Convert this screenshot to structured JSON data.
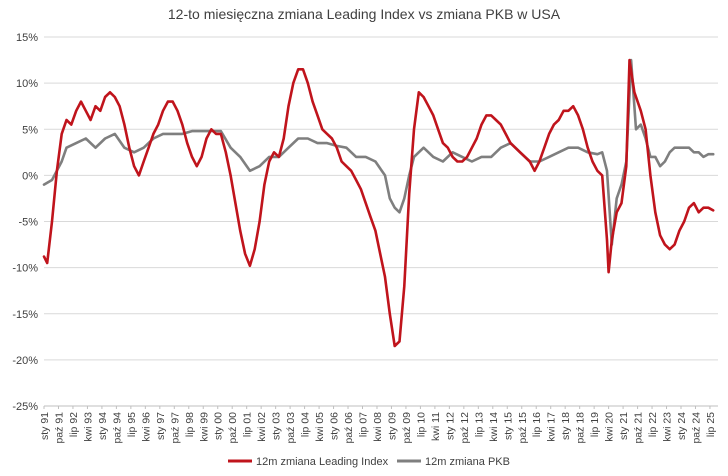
{
  "chart_data": {
    "type": "line",
    "title": "12-to miesięczna zmiana Leading Index vs zmiana PKB w USA",
    "xlabel": "",
    "ylabel": "",
    "x_range": [
      "1991-01",
      "2025-12"
    ],
    "ylim": [
      -25,
      15
    ],
    "y_ticks": [
      15,
      10,
      5,
      0,
      -5,
      -10,
      -15,
      -20,
      -25
    ],
    "y_tick_labels": [
      "15%",
      "10%",
      "5%",
      "0%",
      "-5%",
      "-10%",
      "-15%",
      "-20%",
      "-25%"
    ],
    "x_tick_labels": [
      "sty 91",
      "paź 91",
      "lip 92",
      "kwi 93",
      "sty 94",
      "paź 94",
      "lip 95",
      "kwi 96",
      "sty 97",
      "paź 97",
      "lip 98",
      "kwi 99",
      "sty 00",
      "paź 00",
      "lip 01",
      "kwi 02",
      "sty 03",
      "paź 03",
      "lip 04",
      "kwi 05",
      "sty 06",
      "paź 06",
      "lip 07",
      "kwi 08",
      "sty 09",
      "paź 09",
      "lip 10",
      "kwi 11",
      "sty 12",
      "paź 12",
      "lip 13",
      "kwi 14",
      "sty 15",
      "paź 15",
      "lip 16",
      "kwi 17",
      "sty 18",
      "paź 18",
      "lip 19",
      "kwi 20",
      "sty 21",
      "paź 21",
      "lip 22",
      "kwi 23",
      "sty 24",
      "paź 24",
      "lip 25"
    ],
    "grid": "horizontal",
    "legend_position": "bottom",
    "series": [
      {
        "name": "12m zmiana Leading Index",
        "color": "#c0141c",
        "points": [
          [
            "1991-01",
            -8.8
          ],
          [
            "1991-03",
            -9.5
          ],
          [
            "1991-06",
            -5.0
          ],
          [
            "1991-09",
            0.5
          ],
          [
            "1991-12",
            4.5
          ],
          [
            "1992-03",
            6.0
          ],
          [
            "1992-06",
            5.5
          ],
          [
            "1992-09",
            7.0
          ],
          [
            "1992-12",
            8.0
          ],
          [
            "1993-03",
            7.0
          ],
          [
            "1993-06",
            6.0
          ],
          [
            "1993-09",
            7.5
          ],
          [
            "1993-12",
            7.0
          ],
          [
            "1994-03",
            8.5
          ],
          [
            "1994-06",
            9.0
          ],
          [
            "1994-09",
            8.5
          ],
          [
            "1994-12",
            7.5
          ],
          [
            "1995-03",
            5.5
          ],
          [
            "1995-06",
            3.0
          ],
          [
            "1995-09",
            1.0
          ],
          [
            "1995-12",
            0.0
          ],
          [
            "1996-03",
            1.5
          ],
          [
            "1996-06",
            3.0
          ],
          [
            "1996-09",
            4.5
          ],
          [
            "1996-12",
            5.5
          ],
          [
            "1997-03",
            7.0
          ],
          [
            "1997-06",
            8.0
          ],
          [
            "1997-09",
            8.0
          ],
          [
            "1997-12",
            7.0
          ],
          [
            "1998-03",
            5.5
          ],
          [
            "1998-06",
            3.5
          ],
          [
            "1998-09",
            2.0
          ],
          [
            "1998-12",
            1.0
          ],
          [
            "1999-03",
            2.0
          ],
          [
            "1999-06",
            4.0
          ],
          [
            "1999-09",
            5.0
          ],
          [
            "1999-12",
            4.5
          ],
          [
            "2000-03",
            4.5
          ],
          [
            "2000-06",
            2.5
          ],
          [
            "2000-09",
            0.0
          ],
          [
            "2000-12",
            -3.0
          ],
          [
            "2001-03",
            -6.0
          ],
          [
            "2001-06",
            -8.5
          ],
          [
            "2001-09",
            -9.8
          ],
          [
            "2001-12",
            -8.0
          ],
          [
            "2002-03",
            -5.0
          ],
          [
            "2002-06",
            -1.0
          ],
          [
            "2002-09",
            1.5
          ],
          [
            "2002-12",
            2.5
          ],
          [
            "2003-03",
            2.0
          ],
          [
            "2003-06",
            4.0
          ],
          [
            "2003-09",
            7.5
          ],
          [
            "2003-12",
            10.0
          ],
          [
            "2004-03",
            11.5
          ],
          [
            "2004-06",
            11.5
          ],
          [
            "2004-09",
            10.0
          ],
          [
            "2004-12",
            8.0
          ],
          [
            "2005-03",
            6.5
          ],
          [
            "2005-06",
            5.0
          ],
          [
            "2005-09",
            4.5
          ],
          [
            "2005-12",
            4.0
          ],
          [
            "2006-03",
            3.0
          ],
          [
            "2006-06",
            1.5
          ],
          [
            "2006-09",
            1.0
          ],
          [
            "2006-12",
            0.5
          ],
          [
            "2007-03",
            -0.5
          ],
          [
            "2007-06",
            -1.5
          ],
          [
            "2007-09",
            -3.0
          ],
          [
            "2007-12",
            -4.5
          ],
          [
            "2008-03",
            -6.0
          ],
          [
            "2008-06",
            -8.5
          ],
          [
            "2008-09",
            -11.0
          ],
          [
            "2008-12",
            -15.0
          ],
          [
            "2009-03",
            -18.5
          ],
          [
            "2009-06",
            -18.0
          ],
          [
            "2009-09",
            -12.0
          ],
          [
            "2009-12",
            -2.0
          ],
          [
            "2010-03",
            5.0
          ],
          [
            "2010-06",
            9.0
          ],
          [
            "2010-09",
            8.5
          ],
          [
            "2010-12",
            7.5
          ],
          [
            "2011-03",
            6.5
          ],
          [
            "2011-06",
            5.0
          ],
          [
            "2011-09",
            3.5
          ],
          [
            "2011-12",
            3.0
          ],
          [
            "2012-03",
            2.0
          ],
          [
            "2012-06",
            1.5
          ],
          [
            "2012-09",
            1.5
          ],
          [
            "2012-12",
            2.0
          ],
          [
            "2013-03",
            3.0
          ],
          [
            "2013-06",
            4.0
          ],
          [
            "2013-09",
            5.5
          ],
          [
            "2013-12",
            6.5
          ],
          [
            "2014-03",
            6.5
          ],
          [
            "2014-06",
            6.0
          ],
          [
            "2014-09",
            5.5
          ],
          [
            "2014-12",
            4.5
          ],
          [
            "2015-03",
            3.5
          ],
          [
            "2015-06",
            3.0
          ],
          [
            "2015-09",
            2.5
          ],
          [
            "2015-12",
            2.0
          ],
          [
            "2016-03",
            1.5
          ],
          [
            "2016-06",
            0.5
          ],
          [
            "2016-09",
            1.5
          ],
          [
            "2016-12",
            3.0
          ],
          [
            "2017-03",
            4.5
          ],
          [
            "2017-06",
            5.5
          ],
          [
            "2017-09",
            6.0
          ],
          [
            "2017-12",
            7.0
          ],
          [
            "2018-03",
            7.0
          ],
          [
            "2018-06",
            7.5
          ],
          [
            "2018-09",
            6.5
          ],
          [
            "2018-12",
            5.0
          ],
          [
            "2019-03",
            3.0
          ],
          [
            "2019-06",
            1.5
          ],
          [
            "2019-09",
            0.5
          ],
          [
            "2019-12",
            0.0
          ],
          [
            "2020-03",
            -7.0
          ],
          [
            "2020-04",
            -10.5
          ],
          [
            "2020-06",
            -7.0
          ],
          [
            "2020-09",
            -4.0
          ],
          [
            "2020-12",
            -3.0
          ],
          [
            "2021-03",
            1.0
          ],
          [
            "2021-05",
            12.5
          ],
          [
            "2021-08",
            9.0
          ],
          [
            "2021-12",
            7.0
          ],
          [
            "2022-03",
            5.0
          ],
          [
            "2022-06",
            0.0
          ],
          [
            "2022-09",
            -4.0
          ],
          [
            "2022-12",
            -6.5
          ],
          [
            "2023-03",
            -7.5
          ],
          [
            "2023-06",
            -8.0
          ],
          [
            "2023-09",
            -7.5
          ],
          [
            "2023-12",
            -6.0
          ],
          [
            "2024-03",
            -5.0
          ],
          [
            "2024-06",
            -3.5
          ],
          [
            "2024-09",
            -3.0
          ],
          [
            "2024-12",
            -4.0
          ],
          [
            "2025-03",
            -3.5
          ],
          [
            "2025-06",
            -3.5
          ],
          [
            "2025-09",
            -3.8
          ]
        ]
      },
      {
        "name": "12m zmiana PKB",
        "color": "#7f7f7f",
        "points": [
          [
            "1991-01",
            -1.0
          ],
          [
            "1991-06",
            -0.5
          ],
          [
            "1991-12",
            1.5
          ],
          [
            "1992-03",
            3.0
          ],
          [
            "1992-09",
            3.5
          ],
          [
            "1993-03",
            4.0
          ],
          [
            "1993-09",
            3.0
          ],
          [
            "1994-03",
            4.0
          ],
          [
            "1994-09",
            4.5
          ],
          [
            "1995-03",
            3.0
          ],
          [
            "1995-09",
            2.5
          ],
          [
            "1996-03",
            3.0
          ],
          [
            "1996-09",
            4.0
          ],
          [
            "1997-03",
            4.5
          ],
          [
            "1997-09",
            4.5
          ],
          [
            "1998-03",
            4.5
          ],
          [
            "1998-09",
            4.8
          ],
          [
            "1999-03",
            4.8
          ],
          [
            "1999-09",
            4.8
          ],
          [
            "2000-03",
            4.8
          ],
          [
            "2000-09",
            3.0
          ],
          [
            "2001-03",
            2.0
          ],
          [
            "2001-09",
            0.5
          ],
          [
            "2002-03",
            1.0
          ],
          [
            "2002-09",
            2.0
          ],
          [
            "2003-03",
            2.0
          ],
          [
            "2003-09",
            3.0
          ],
          [
            "2004-03",
            4.0
          ],
          [
            "2004-09",
            4.0
          ],
          [
            "2005-03",
            3.5
          ],
          [
            "2005-09",
            3.5
          ],
          [
            "2006-03",
            3.2
          ],
          [
            "2006-09",
            3.0
          ],
          [
            "2007-03",
            2.0
          ],
          [
            "2007-09",
            2.0
          ],
          [
            "2008-03",
            1.5
          ],
          [
            "2008-09",
            0.0
          ],
          [
            "2008-12",
            -2.5
          ],
          [
            "2009-03",
            -3.5
          ],
          [
            "2009-06",
            -4.0
          ],
          [
            "2009-09",
            -2.5
          ],
          [
            "2009-12",
            0.0
          ],
          [
            "2010-03",
            2.0
          ],
          [
            "2010-09",
            3.0
          ],
          [
            "2011-03",
            2.0
          ],
          [
            "2011-09",
            1.5
          ],
          [
            "2012-03",
            2.5
          ],
          [
            "2012-09",
            2.0
          ],
          [
            "2013-03",
            1.5
          ],
          [
            "2013-09",
            2.0
          ],
          [
            "2014-03",
            2.0
          ],
          [
            "2014-09",
            3.0
          ],
          [
            "2015-03",
            3.5
          ],
          [
            "2015-09",
            2.5
          ],
          [
            "2016-03",
            1.5
          ],
          [
            "2016-09",
            1.5
          ],
          [
            "2017-03",
            2.0
          ],
          [
            "2017-09",
            2.5
          ],
          [
            "2018-03",
            3.0
          ],
          [
            "2018-09",
            3.0
          ],
          [
            "2019-03",
            2.5
          ],
          [
            "2019-09",
            2.3
          ],
          [
            "2019-12",
            2.5
          ],
          [
            "2020-03",
            0.5
          ],
          [
            "2020-06",
            -7.5
          ],
          [
            "2020-09",
            -2.5
          ],
          [
            "2020-12",
            -1.0
          ],
          [
            "2021-03",
            1.5
          ],
          [
            "2021-06",
            12.5
          ],
          [
            "2021-09",
            5.0
          ],
          [
            "2021-12",
            5.5
          ],
          [
            "2022-03",
            4.0
          ],
          [
            "2022-06",
            2.0
          ],
          [
            "2022-09",
            2.0
          ],
          [
            "2022-12",
            1.0
          ],
          [
            "2023-03",
            1.5
          ],
          [
            "2023-06",
            2.5
          ],
          [
            "2023-09",
            3.0
          ],
          [
            "2023-12",
            3.0
          ],
          [
            "2024-03",
            3.0
          ],
          [
            "2024-06",
            3.0
          ],
          [
            "2024-09",
            2.5
          ],
          [
            "2024-12",
            2.5
          ],
          [
            "2025-03",
            2.0
          ],
          [
            "2025-06",
            2.3
          ],
          [
            "2025-09",
            2.3
          ]
        ]
      }
    ]
  }
}
